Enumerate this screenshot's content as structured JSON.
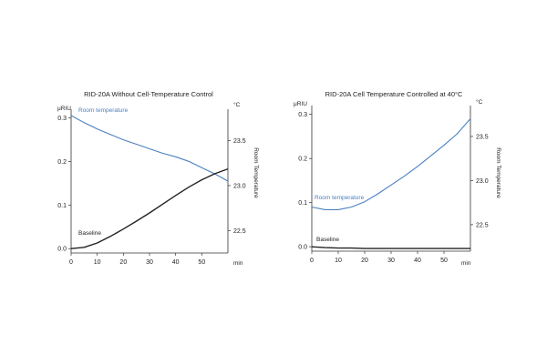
{
  "chart_data": [
    {
      "type": "line",
      "title": "RID-20A Without Cell-Temperature Control",
      "x_unit_label": "min",
      "x_ticks": [
        0,
        10,
        20,
        30,
        40,
        50
      ],
      "xlim": [
        0,
        60
      ],
      "left_axis": {
        "unit_label": "μRIU",
        "ticks": [
          "0.0",
          "0.1",
          "0.2",
          "0.3"
        ],
        "tick_values": [
          0.0,
          0.1,
          0.2,
          0.3
        ],
        "ylim": [
          -0.01,
          0.32
        ]
      },
      "right_axis": {
        "unit_label": "°C",
        "title": "Room Temperature",
        "ticks": [
          "22.5",
          "23.0",
          "23.5"
        ],
        "tick_values": [
          22.5,
          23.0,
          23.5
        ],
        "ylim": [
          22.25,
          23.85
        ]
      },
      "series": [
        {
          "name": "Room temperature",
          "axis": "right",
          "color": "#4a7fc1",
          "x": [
            0,
            5,
            10,
            15,
            20,
            25,
            30,
            35,
            40,
            45,
            50,
            55,
            60
          ],
          "y": [
            23.78,
            23.7,
            23.63,
            23.57,
            23.51,
            23.46,
            23.41,
            23.36,
            23.32,
            23.27,
            23.2,
            23.13,
            23.05
          ]
        },
        {
          "name": "Baseline",
          "axis": "left",
          "color": "#222222",
          "x": [
            0,
            5,
            10,
            15,
            20,
            25,
            30,
            35,
            40,
            45,
            50,
            55,
            60
          ],
          "y": [
            0.0,
            0.003,
            0.013,
            0.028,
            0.045,
            0.063,
            0.082,
            0.102,
            0.122,
            0.141,
            0.158,
            0.172,
            0.183
          ]
        }
      ]
    },
    {
      "type": "line",
      "title": "RID-20A Cell Temperature Controlled at 40°C",
      "x_unit_label": "min",
      "x_ticks": [
        0,
        10,
        20,
        30,
        40,
        50
      ],
      "xlim": [
        0,
        60
      ],
      "left_axis": {
        "unit_label": "μRIU",
        "ticks": [
          "0.0",
          "0.1",
          "0.2",
          "0.3"
        ],
        "tick_values": [
          0.0,
          0.1,
          0.2,
          0.3
        ],
        "ylim": [
          -0.01,
          0.32
        ]
      },
      "right_axis": {
        "unit_label": "°C",
        "title": "Room Temperature",
        "ticks": [
          "22.5",
          "23.0",
          "23.5"
        ],
        "tick_values": [
          22.5,
          23.0,
          23.5
        ],
        "ylim": [
          22.2,
          23.85
        ]
      },
      "series": [
        {
          "name": "Room temperature",
          "axis": "right",
          "color": "#4a7fc1",
          "x": [
            0,
            5,
            10,
            15,
            20,
            25,
            30,
            35,
            40,
            45,
            50,
            55,
            60
          ],
          "y": [
            22.7,
            22.67,
            22.67,
            22.7,
            22.76,
            22.85,
            22.95,
            23.05,
            23.16,
            23.28,
            23.4,
            23.53,
            23.7
          ]
        },
        {
          "name": "Baseline",
          "axis": "left",
          "color": "#222222",
          "x": [
            0,
            5,
            10,
            15,
            20,
            25,
            30,
            35,
            40,
            45,
            50,
            55,
            60
          ],
          "y": [
            0.0,
            -0.002,
            -0.003,
            -0.003,
            -0.004,
            -0.004,
            -0.004,
            -0.004,
            -0.004,
            -0.004,
            -0.004,
            -0.004,
            -0.004
          ]
        }
      ]
    }
  ]
}
